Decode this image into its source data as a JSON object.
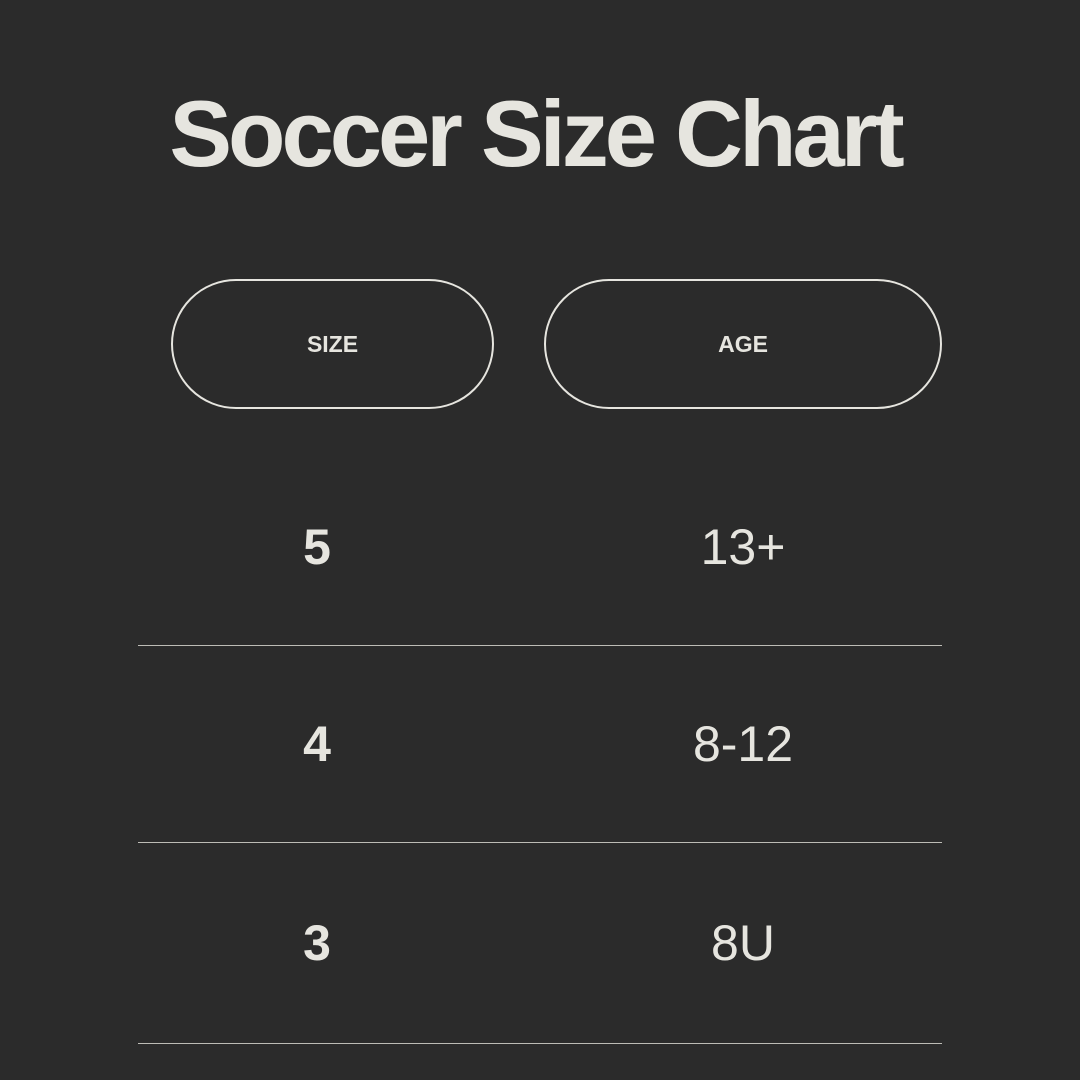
{
  "title": "Soccer Size Chart",
  "headers": {
    "size": "SIZE",
    "age": "AGE"
  },
  "rows": [
    {
      "size": "5",
      "age": "13+"
    },
    {
      "size": "4",
      "age": "8-12"
    },
    {
      "size": "3",
      "age": "8U"
    }
  ],
  "colors": {
    "background": "#2b2b2b",
    "text": "#e6e5df"
  }
}
